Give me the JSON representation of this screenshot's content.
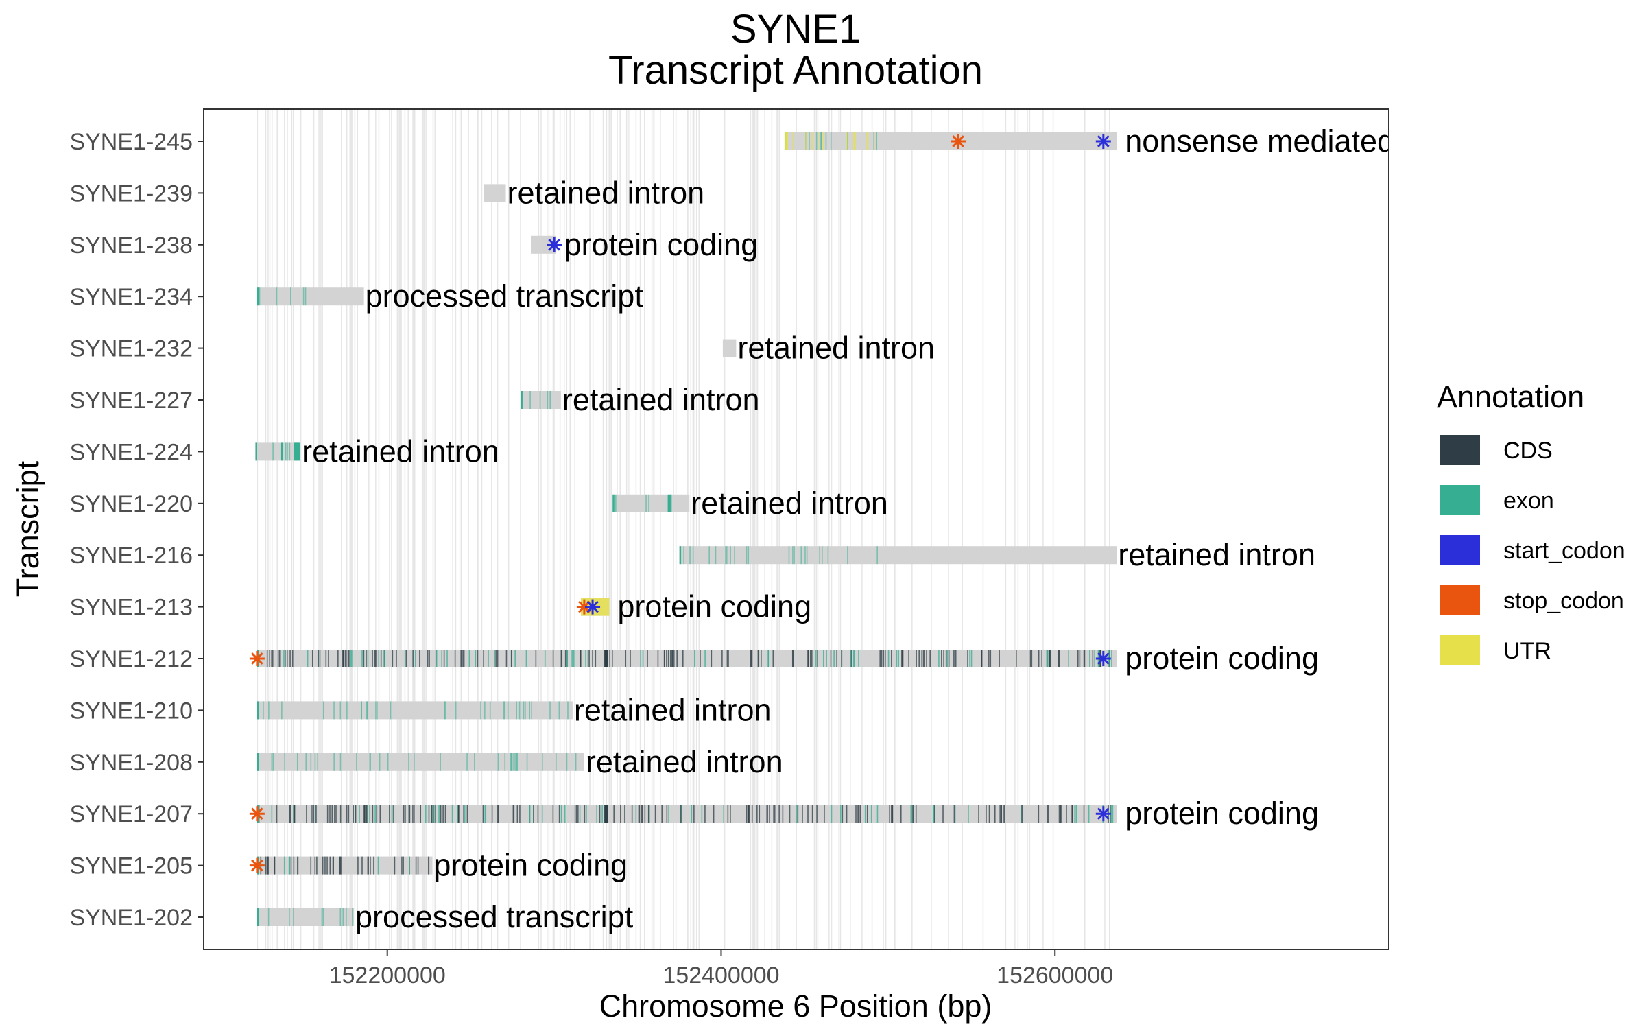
{
  "chart_data": {
    "type": "gene-track",
    "title": "SYNE1",
    "subtitle": "Transcript Annotation",
    "xlabel": "Chromosome 6 Position (bp)",
    "ylabel": "Transcript",
    "xlim": [
      152090000,
      152800000
    ],
    "xticks": [
      152200000,
      152400000,
      152600000
    ],
    "xtick_labels": [
      "152200000",
      "152400000",
      "152600000"
    ],
    "grid": false,
    "legend": {
      "title": "Annotation",
      "position": "right",
      "items": [
        {
          "label": "CDS",
          "color": "#2F3E46"
        },
        {
          "label": "exon",
          "color": "#35AE91"
        },
        {
          "label": "start_codon",
          "color": "#2B2FD9"
        },
        {
          "label": "stop_codon",
          "color": "#E9540E"
        },
        {
          "label": "UTR",
          "color": "#E6E14A"
        }
      ]
    },
    "transcripts": [
      {
        "name": "SYNE1-245",
        "biotype": "nonsense mediated decay",
        "start": 152438000,
        "end": 152637000,
        "exon_range": [
          152438000,
          152495000
        ],
        "utr_range": [
          152438000,
          152440000
        ],
        "start_codon": 152629000,
        "stop_codon": 152542000
      },
      {
        "name": "SYNE1-239",
        "biotype": "retained intron",
        "start": 152258000,
        "end": 152271000
      },
      {
        "name": "SYNE1-238",
        "biotype": "protein coding",
        "start": 152286000,
        "end": 152301000,
        "start_codon": 152300000
      },
      {
        "name": "SYNE1-234",
        "biotype": "processed transcript",
        "start": 152122000,
        "end": 152186000,
        "exon_range": [
          152122000,
          152152000
        ]
      },
      {
        "name": "SYNE1-232",
        "biotype": "retained intron",
        "start": 152401000,
        "end": 152409000
      },
      {
        "name": "SYNE1-227",
        "biotype": "retained intron",
        "start": 152280000,
        "end": 152304000,
        "exon_range": [
          152280000,
          152302000
        ]
      },
      {
        "name": "SYNE1-224",
        "biotype": "retained intron",
        "start": 152121000,
        "end": 152148000,
        "exon_range": [
          152121000,
          152148000
        ]
      },
      {
        "name": "SYNE1-220",
        "biotype": "retained intron",
        "start": 152335000,
        "end": 152381000,
        "exon_range": [
          152335000,
          152370000
        ]
      },
      {
        "name": "SYNE1-216",
        "biotype": "retained intron",
        "start": 152375000,
        "end": 152637000,
        "exon_range": [
          152375000,
          152500000
        ]
      },
      {
        "name": "SYNE1-213",
        "biotype": "protein coding",
        "start": 152316000,
        "end": 152333000,
        "utr_range": [
          152316000,
          152333000
        ],
        "start_codon": 152323000,
        "stop_codon": 152318000
      },
      {
        "name": "SYNE1-212",
        "biotype": "protein coding",
        "start": 152122000,
        "end": 152637000,
        "exon_range": [
          152122000,
          152636000
        ],
        "start_codon": 152629000,
        "stop_codon": 152122000
      },
      {
        "name": "SYNE1-210",
        "biotype": "retained intron",
        "start": 152122000,
        "end": 152311000,
        "exon_range": [
          152122000,
          152311000
        ]
      },
      {
        "name": "SYNE1-208",
        "biotype": "retained intron",
        "start": 152122000,
        "end": 152318000,
        "exon_range": [
          152122000,
          152318000
        ]
      },
      {
        "name": "SYNE1-207",
        "biotype": "protein coding",
        "start": 152122000,
        "end": 152637000,
        "exon_range": [
          152122000,
          152636000
        ],
        "start_codon": 152629000,
        "stop_codon": 152122000
      },
      {
        "name": "SYNE1-205",
        "biotype": "protein coding",
        "start": 152122000,
        "end": 152227000,
        "exon_range": [
          152122000,
          152226000
        ],
        "stop_codon": 152122000
      },
      {
        "name": "SYNE1-202",
        "biotype": "processed transcript",
        "start": 152122000,
        "end": 152180000,
        "exon_range": [
          152122000,
          152180000
        ]
      }
    ]
  }
}
